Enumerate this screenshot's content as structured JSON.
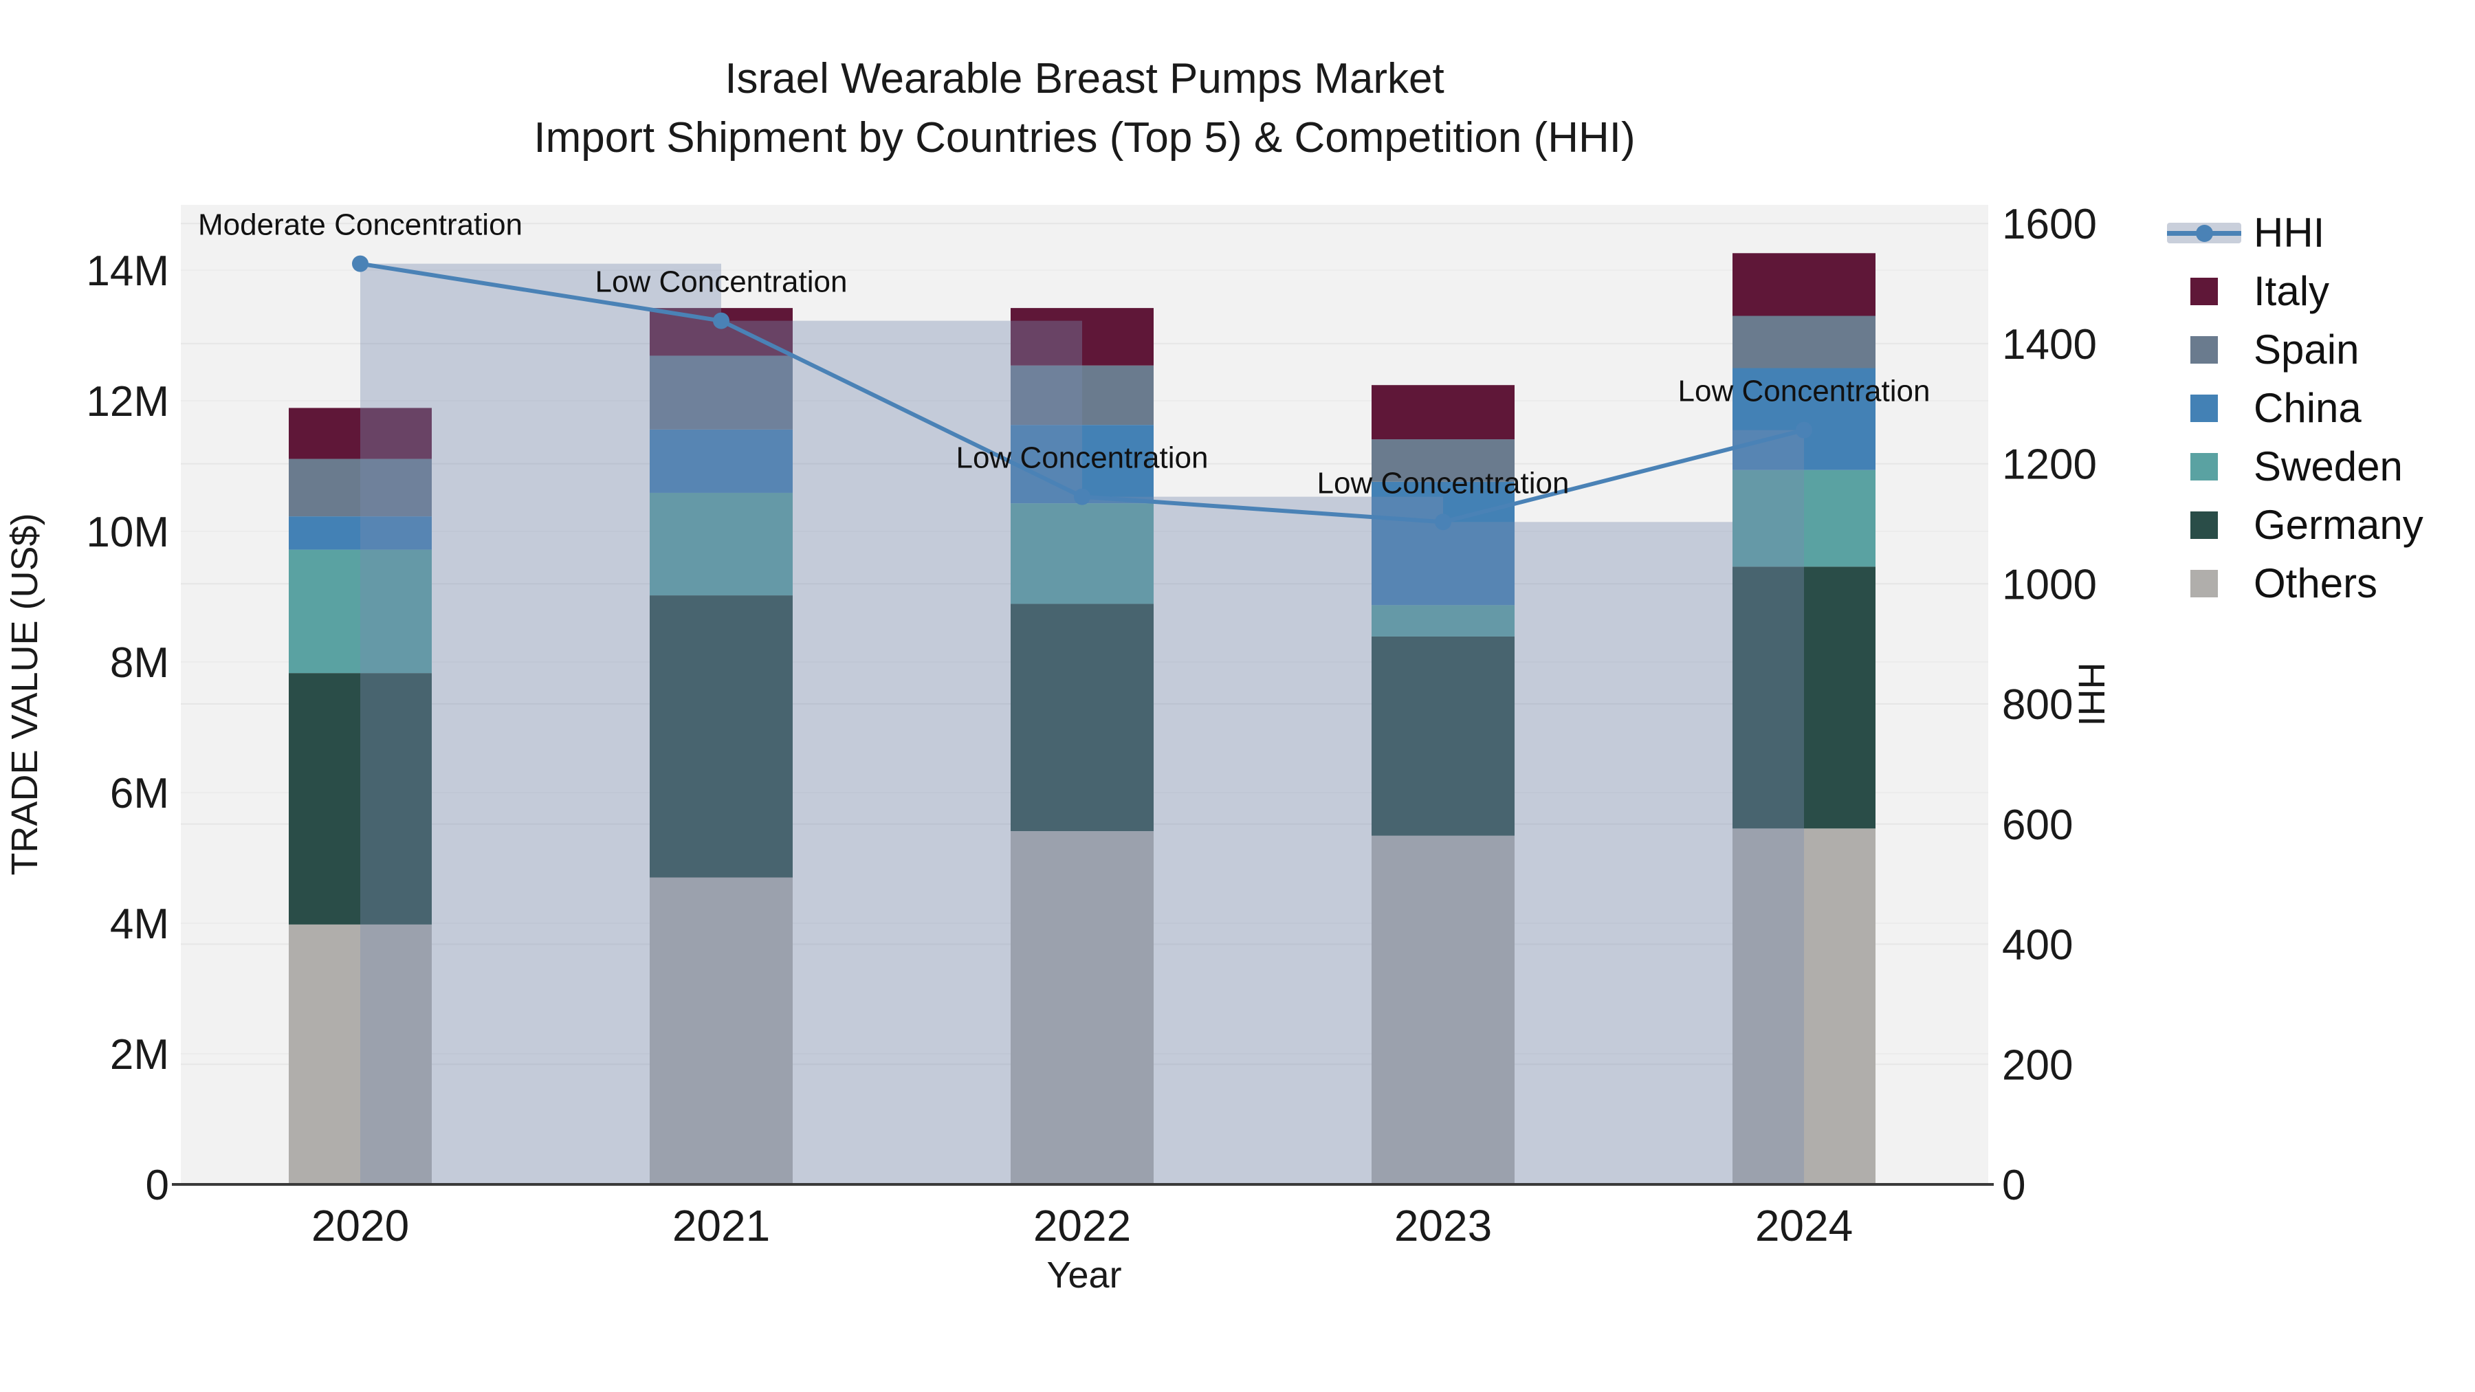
{
  "title": {
    "line1": "Israel Wearable Breast Pumps Market",
    "line2": "Import Shipment by Countries (Top 5) & Competition (HHI)"
  },
  "chart_data": {
    "type": "bar",
    "subtype": "stacked-bars-with-line",
    "categories": [
      "2020",
      "2021",
      "2022",
      "2023",
      "2024"
    ],
    "value_unit": "million US$",
    "series": [
      {
        "name": "Others",
        "color": "#b0aeab",
        "values": [
          3.98,
          4.7,
          5.41,
          5.34,
          5.45
        ]
      },
      {
        "name": "Germany",
        "color": "#2a4d48",
        "values": [
          3.85,
          4.32,
          3.48,
          3.05,
          4.01
        ]
      },
      {
        "name": "Sweden",
        "color": "#5aa2a2",
        "values": [
          1.89,
          1.57,
          1.54,
          0.48,
          1.48
        ]
      },
      {
        "name": "China",
        "color": "#4381b5",
        "values": [
          0.51,
          0.97,
          1.2,
          1.89,
          1.56
        ]
      },
      {
        "name": "Spain",
        "color": "#6a7b8e",
        "values": [
          0.88,
          1.13,
          0.91,
          0.65,
          0.8
        ]
      },
      {
        "name": "Italy",
        "color": "#5f1738",
        "values": [
          0.78,
          0.73,
          0.88,
          0.83,
          0.96
        ]
      }
    ],
    "totals": [
      11.89,
      13.42,
      13.42,
      12.24,
      14.26
    ],
    "hhi": {
      "name": "HHI",
      "color": "#4a82b6",
      "band_color": "rgba(120,140,175,0.38)",
      "values": [
        1533,
        1438,
        1145,
        1103,
        1256
      ]
    },
    "annotations": [
      {
        "category": "2020",
        "text": "Moderate Concentration"
      },
      {
        "category": "2021",
        "text": "Low Concentration"
      },
      {
        "category": "2022",
        "text": "Low Concentration"
      },
      {
        "category": "2023",
        "text": "Low Concentration"
      },
      {
        "category": "2024",
        "text": "Low Concentration"
      }
    ],
    "xlabel": "Year",
    "ylabel": "TRADE VALUE (US$)",
    "y2label": "HHI",
    "ylim": [
      0,
      15
    ],
    "y2lim": [
      0,
      1631
    ],
    "yticks": [
      {
        "v": 0,
        "label": "0"
      },
      {
        "v": 2,
        "label": "2M"
      },
      {
        "v": 4,
        "label": "4M"
      },
      {
        "v": 6,
        "label": "6M"
      },
      {
        "v": 8,
        "label": "8M"
      },
      {
        "v": 10,
        "label": "10M"
      },
      {
        "v": 12,
        "label": "12M"
      },
      {
        "v": 14,
        "label": "14M"
      }
    ],
    "y2ticks": [
      0,
      200,
      400,
      600,
      800,
      1000,
      1200,
      1400,
      1600
    ],
    "grid": true,
    "plot_bg": "#f2f2f2",
    "legend_position": "right"
  },
  "legend": {
    "entries": [
      {
        "name": "HHI",
        "type": "line",
        "color": "#4a82b6"
      },
      {
        "name": "Italy",
        "type": "square",
        "color": "#5f1738"
      },
      {
        "name": "Spain",
        "type": "square",
        "color": "#6a7b8e"
      },
      {
        "name": "China",
        "type": "square",
        "color": "#4381b5"
      },
      {
        "name": "Sweden",
        "type": "square",
        "color": "#5aa2a2"
      },
      {
        "name": "Germany",
        "type": "square",
        "color": "#2a4d48"
      },
      {
        "name": "Others",
        "type": "square",
        "color": "#b0aeab"
      }
    ]
  }
}
